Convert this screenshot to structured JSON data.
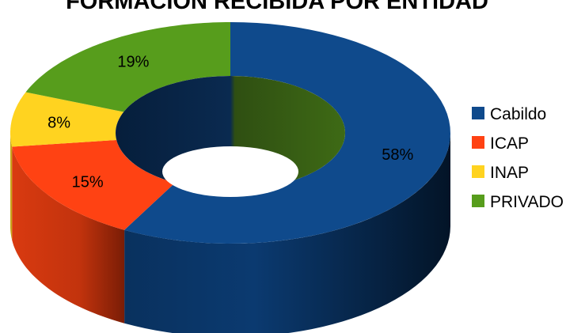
{
  "chart_data": {
    "type": "pie",
    "variant": "3d-donut",
    "title": "FORMACIÓN RECIBIDA POR ENTIDAD",
    "categories": [
      "Cabildo",
      "ICAP",
      "INAP",
      "PRIVADO"
    ],
    "values": [
      58,
      15,
      8,
      19
    ],
    "value_labels": [
      "58%",
      "15%",
      "8%",
      "19%"
    ],
    "colors": [
      "#0f4a8c",
      "#ff4213",
      "#ffd320",
      "#579d1c"
    ],
    "legend_position": "right"
  }
}
